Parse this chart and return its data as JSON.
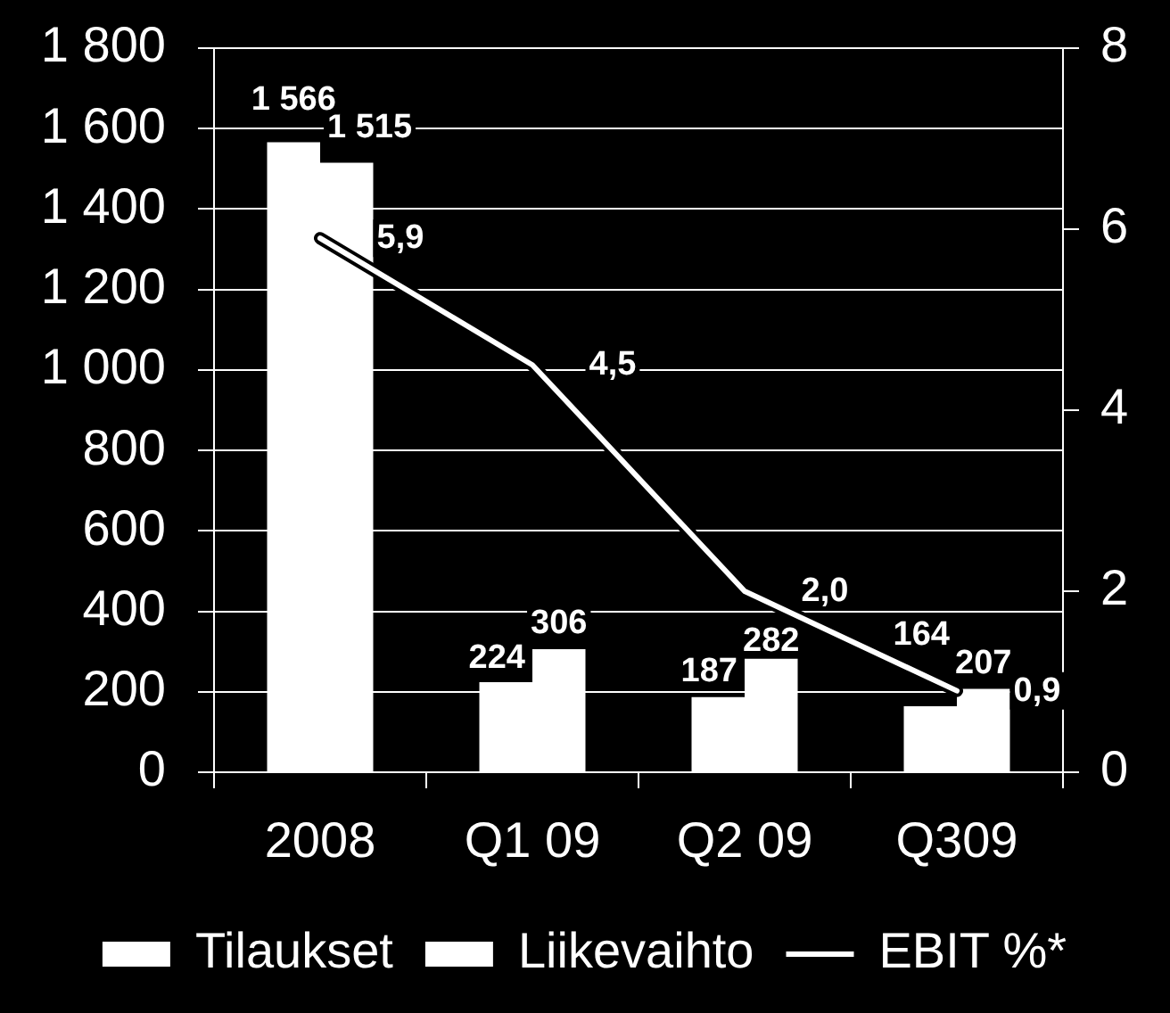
{
  "chart_data": {
    "type": "bar",
    "categories": [
      "2008",
      "Q1 09",
      "Q2 09",
      "Q309"
    ],
    "series": [
      {
        "name": "Tilaukset",
        "color": "#ffffff",
        "values": [
          1566,
          224,
          187,
          164
        ],
        "value_labels": [
          "1 566",
          "224",
          "187",
          "164"
        ]
      },
      {
        "name": "Liikevaihto",
        "color": "#ffffff",
        "values": [
          1515,
          306,
          282,
          207
        ],
        "value_labels": [
          "1 515",
          "306",
          "282",
          "207"
        ]
      },
      {
        "name": "EBIT %*",
        "type": "line",
        "axis": "y2",
        "color": "#ffffff",
        "values": [
          5.9,
          4.5,
          2.0,
          0.9
        ],
        "value_labels": [
          "5,9",
          "4,5",
          "2,0",
          "0,9"
        ]
      }
    ],
    "ylim": [
      0,
      1800
    ],
    "yticks": [
      0,
      200,
      400,
      600,
      800,
      {
        "value": 1000,
        "label": "1 000"
      },
      {
        "value": 1200,
        "label": "1 200"
      },
      {
        "value": 1400,
        "label": "1 400"
      },
      {
        "value": 1600,
        "label": "1 600"
      },
      {
        "value": 1800,
        "label": "1 800"
      }
    ],
    "y2lim": [
      0,
      8
    ],
    "y2ticks": [
      0,
      2,
      4,
      6,
      8
    ],
    "grid": "y",
    "legend": "bottom",
    "marker": "none",
    "line_style": "solid"
  }
}
